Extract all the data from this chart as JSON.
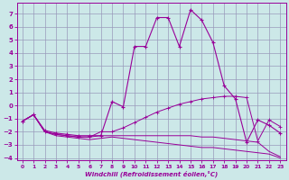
{
  "xlabel": "Windchill (Refroidissement éolien,°C)",
  "background_color": "#cce8e8",
  "grid_color": "#9999bb",
  "line_color": "#990099",
  "xlim": [
    -0.5,
    23.5
  ],
  "ylim": [
    -4.2,
    7.8
  ],
  "xticks": [
    0,
    1,
    2,
    3,
    4,
    5,
    6,
    7,
    8,
    9,
    10,
    11,
    12,
    13,
    14,
    15,
    16,
    17,
    18,
    19,
    20,
    21,
    22,
    23
  ],
  "yticks": [
    -4,
    -3,
    -2,
    -1,
    0,
    1,
    2,
    3,
    4,
    5,
    6,
    7
  ],
  "line1_x": [
    0,
    1,
    2,
    3,
    4,
    5,
    6,
    7,
    8,
    9,
    10,
    11,
    12,
    13,
    14,
    15,
    16,
    17,
    18,
    19,
    20,
    21,
    22,
    23
  ],
  "line1_y": [
    -1.2,
    -0.7,
    -2.0,
    -2.2,
    -2.3,
    -2.4,
    -2.4,
    -2.3,
    -2.3,
    -2.3,
    -2.3,
    -2.3,
    -2.3,
    -2.3,
    -2.3,
    -2.3,
    -2.4,
    -2.4,
    -2.5,
    -2.6,
    -2.7,
    -2.8,
    -3.5,
    -3.9
  ],
  "line2_x": [
    0,
    1,
    2,
    3,
    4,
    5,
    6,
    7,
    8,
    9,
    10,
    11,
    12,
    13,
    14,
    15,
    16,
    17,
    18,
    19,
    20,
    21,
    22,
    23
  ],
  "line2_y": [
    -1.2,
    -0.7,
    -2.0,
    -2.2,
    -2.3,
    -2.4,
    -2.4,
    -2.0,
    -2.0,
    -1.7,
    -1.3,
    -0.9,
    -0.5,
    -0.2,
    0.1,
    0.3,
    0.5,
    0.6,
    0.7,
    0.7,
    0.6,
    -2.7,
    -1.1,
    -1.6
  ],
  "line3_x": [
    0,
    1,
    2,
    3,
    4,
    5,
    6,
    7,
    8,
    9,
    10,
    11,
    12,
    13,
    14,
    15,
    16,
    17,
    18,
    19,
    20,
    21,
    22,
    23
  ],
  "line3_y": [
    -1.2,
    -0.7,
    -1.9,
    -2.1,
    -2.2,
    -2.3,
    -2.3,
    -2.3,
    0.3,
    -0.1,
    4.5,
    4.5,
    6.7,
    6.7,
    4.5,
    7.3,
    6.5,
    4.8,
    1.5,
    0.5,
    -2.8,
    -1.1,
    -1.5,
    -2.1
  ],
  "line4_x": [
    0,
    1,
    2,
    3,
    4,
    5,
    6,
    7,
    8,
    9,
    10,
    11,
    12,
    13,
    14,
    15,
    16,
    17,
    18,
    19,
    20,
    21,
    22,
    23
  ],
  "line4_y": [
    -1.2,
    -0.7,
    -2.0,
    -2.3,
    -2.4,
    -2.5,
    -2.6,
    -2.5,
    -2.4,
    -2.5,
    -2.6,
    -2.7,
    -2.8,
    -2.9,
    -3.0,
    -3.1,
    -3.2,
    -3.2,
    -3.3,
    -3.4,
    -3.5,
    -3.6,
    -3.7,
    -4.0
  ]
}
